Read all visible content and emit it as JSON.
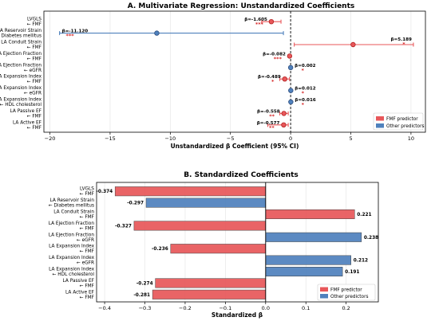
{
  "chart_data": [
    {
      "type": "forest",
      "title": "A. Multivariate Regression: Unstandardized Coefficients",
      "xlabel": "Unstandardized β Coefficient (95% CI)",
      "xlim": [
        -20.5,
        11.2
      ],
      "xticks": [
        -20,
        -15,
        -10,
        -5,
        0,
        5,
        10
      ],
      "xtick_labels": [
        "−20",
        "−15",
        "−10",
        "−5",
        "0",
        "5",
        "10"
      ],
      "reference_line": 0,
      "grid": true,
      "legend_position": "lower-right",
      "legend": [
        {
          "label": "FMF predictor",
          "color": "#e8575a"
        },
        {
          "label": "Other predictors",
          "color": "#4f81bd"
        }
      ],
      "rows": [
        {
          "label": [
            "LVGLS",
            "← FMF"
          ],
          "beta": -1.605,
          "ci": [
            -2.4,
            -0.8
          ],
          "group": "fmf",
          "beta_label": "β=-1.605",
          "stars": "***"
        },
        {
          "label": [
            "LA Reservoir Strain",
            "← Diabetes mellitus"
          ],
          "beta": -11.12,
          "ci": [
            -19.2,
            -0.6
          ],
          "group": "other",
          "beta_label": "β=-11.120",
          "stars": "***"
        },
        {
          "label": [
            "LA Conduit Strain",
            "← FMF"
          ],
          "beta": 5.189,
          "ci": [
            0.3,
            10.2
          ],
          "group": "fmf",
          "beta_label": "β=5.189",
          "stars": "*"
        },
        {
          "label": [
            "LA Ejection Fraction",
            "← FMF"
          ],
          "beta": -0.082,
          "ci": [
            -0.2,
            0.0
          ],
          "group": "fmf",
          "beta_label": "β=-0.082",
          "stars": "***"
        },
        {
          "label": [
            "LA Ejection Fraction",
            "← eGFR"
          ],
          "beta": 0.002,
          "ci": [
            0.0,
            0.0
          ],
          "group": "other",
          "beta_label": "β=0.002",
          "stars": "*"
        },
        {
          "label": [
            "LA Expansion Index",
            "← FMF"
          ],
          "beta": -0.489,
          "ci": [
            -0.9,
            -0.1
          ],
          "group": "fmf",
          "beta_label": "β=-0.489",
          "stars": "*"
        },
        {
          "label": [
            "LA Expansion Index",
            "← eGFR"
          ],
          "beta": 0.012,
          "ci": [
            0.0,
            0.02
          ],
          "group": "other",
          "beta_label": "β=0.012",
          "stars": "*"
        },
        {
          "label": [
            "LA Expansion Index",
            "← HDL cholesterol"
          ],
          "beta": 0.016,
          "ci": [
            0.0,
            0.03
          ],
          "group": "other",
          "beta_label": "β=0.016",
          "stars": "*"
        },
        {
          "label": [
            "LA Passive EF",
            "← FMF"
          ],
          "beta": -0.558,
          "ci": [
            -0.9,
            -0.2
          ],
          "group": "fmf",
          "beta_label": "β=-0.558",
          "stars": "**"
        },
        {
          "label": [
            "LA Active EF",
            "← FMF"
          ],
          "beta": -0.577,
          "ci": [
            -1.9,
            -0.2
          ],
          "group": "fmf",
          "beta_label": "β=-0.577",
          "stars": "**"
        }
      ]
    },
    {
      "type": "bar",
      "orientation": "horizontal",
      "title": "B. Standardized Coefficients",
      "xlabel": "Standardized β",
      "xlim": [
        -0.42,
        0.28
      ],
      "xticks": [
        -0.4,
        -0.3,
        -0.2,
        -0.1,
        0.0,
        0.1,
        0.2
      ],
      "xtick_labels": [
        "−0.4",
        "−0.3",
        "−0.2",
        "−0.1",
        "0.0",
        "0.1",
        "0.2"
      ],
      "reference_line": 0,
      "grid": true,
      "legend_position": "lower-right",
      "legend": [
        {
          "label": "FMF predictor",
          "color": "#e8575a"
        },
        {
          "label": "Other predictors",
          "color": "#4f81bd"
        }
      ],
      "bars": [
        {
          "label": [
            "LVGLS",
            "← FMF"
          ],
          "value": -0.374,
          "value_label": "-0.374",
          "group": "fmf"
        },
        {
          "label": [
            "LA Reservoir Strain",
            "← Diabetes mellitus"
          ],
          "value": -0.297,
          "value_label": "-0.297",
          "group": "other"
        },
        {
          "label": [
            "LA Conduit Strain",
            "← FMF"
          ],
          "value": 0.221,
          "value_label": "0.221",
          "group": "fmf"
        },
        {
          "label": [
            "LA Ejection Fraction",
            "← FMF"
          ],
          "value": -0.327,
          "value_label": "-0.327",
          "group": "fmf"
        },
        {
          "label": [
            "LA Ejection Fraction",
            "← eGFR"
          ],
          "value": 0.238,
          "value_label": "0.238",
          "group": "other"
        },
        {
          "label": [
            "LA Expansion Index",
            "← FMF"
          ],
          "value": -0.236,
          "value_label": "-0.236",
          "group": "fmf"
        },
        {
          "label": [
            "LA Expansion Index",
            "← eGFR"
          ],
          "value": 0.212,
          "value_label": "0.212",
          "group": "other"
        },
        {
          "label": [
            "LA Expansion Index",
            "← HDL cholesterol"
          ],
          "value": 0.191,
          "value_label": "0.191",
          "group": "other"
        },
        {
          "label": [
            "LA Passive EF",
            "← FMF"
          ],
          "value": -0.274,
          "value_label": "-0.274",
          "group": "fmf"
        },
        {
          "label": [
            "LA Active EF",
            "← FMF"
          ],
          "value": -0.281,
          "value_label": "-0.281",
          "group": "fmf"
        }
      ]
    }
  ],
  "colors": {
    "fmf": "#e8575a",
    "fmf_edge": "#b22222",
    "other": "#4f81bd",
    "other_edge": "#2f4f7f",
    "grid": "#e3e3e3",
    "star": "#d62728"
  }
}
